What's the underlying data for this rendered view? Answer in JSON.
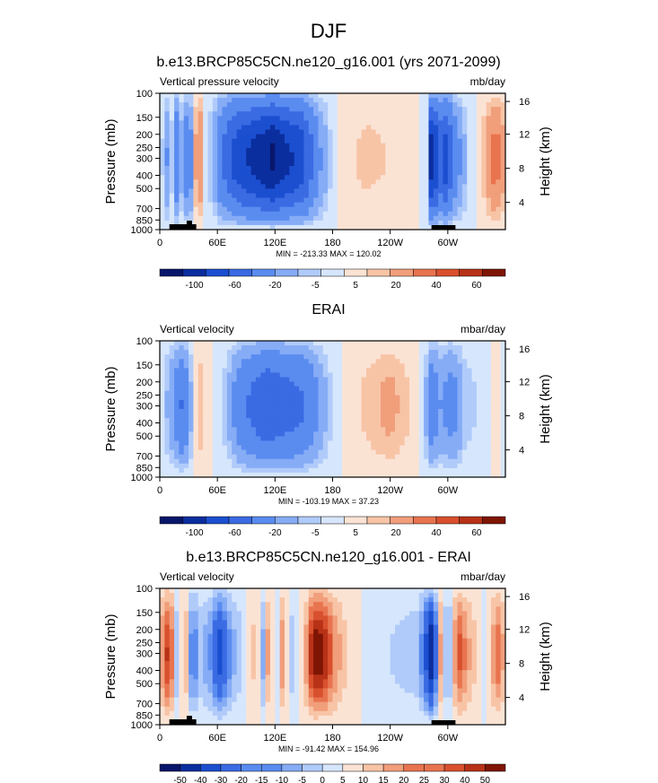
{
  "figure": {
    "title": "DJF"
  },
  "colors": {
    "scale": [
      "#08166b",
      "#0b2e9e",
      "#1b4fd0",
      "#3a6be3",
      "#5a8cf0",
      "#86acf6",
      "#b0cbfa",
      "#d6e6fc",
      "#fbe3d4",
      "#f8c4a6",
      "#f19e7b",
      "#e8744f",
      "#d9502e",
      "#b73217",
      "#7f1504"
    ]
  },
  "chart_data": [
    {
      "type": "heatmap",
      "title": "b.e13.BRCP85C5CN.ne120_g16.001 (yrs 2071-2099)",
      "variable": "Vertical pressure velocity",
      "units": "mb/day",
      "ylabel": "Pressure (mb)",
      "ylabel_right": "Height (km)",
      "x_ticks": [
        "0",
        "60E",
        "120E",
        "180",
        "120W",
        "60W"
      ],
      "y_ticks": [
        "100",
        "150",
        "200",
        "250",
        "300",
        "400",
        "500",
        "700",
        "850",
        "1000"
      ],
      "y_ticks_right": [
        "16",
        "12",
        "8",
        "4"
      ],
      "min_max": "MIN = -213.33  MAX = 120.02",
      "colorbar_labels": [
        "-100",
        "-60",
        "-20",
        "-5",
        "5",
        "20",
        "40",
        "60"
      ],
      "topography": true,
      "field": [
        {
          "lon": 0,
          "v": 2
        },
        {
          "lon": 8,
          "v": -20
        },
        {
          "lon": 12,
          "v": -4
        },
        {
          "lon": 18,
          "v": -35
        },
        {
          "lon": 24,
          "v": -6
        },
        {
          "lon": 30,
          "v": -45
        },
        {
          "lon": 36,
          "v": 8
        },
        {
          "lon": 42,
          "v": 18
        },
        {
          "lon": 48,
          "v": -4
        },
        {
          "lon": 56,
          "v": -12
        },
        {
          "lon": 64,
          "v": -35
        },
        {
          "lon": 80,
          "v": -65
        },
        {
          "lon": 100,
          "v": -80
        },
        {
          "lon": 118,
          "v": -95
        },
        {
          "lon": 130,
          "v": -80
        },
        {
          "lon": 148,
          "v": -65
        },
        {
          "lon": 165,
          "v": -22
        },
        {
          "lon": 178,
          "v": -5
        },
        {
          "lon": 192,
          "v": 3
        },
        {
          "lon": 215,
          "v": 6
        },
        {
          "lon": 245,
          "v": 4
        },
        {
          "lon": 268,
          "v": 2
        },
        {
          "lon": 278,
          "v": -3
        },
        {
          "lon": 284,
          "v": -110
        },
        {
          "lon": 290,
          "v": -45
        },
        {
          "lon": 298,
          "v": -65
        },
        {
          "lon": 308,
          "v": -28
        },
        {
          "lon": 320,
          "v": -6
        },
        {
          "lon": 335,
          "v": 4
        },
        {
          "lon": 350,
          "v": 25
        },
        {
          "lon": 360,
          "v": 8
        }
      ]
    },
    {
      "type": "heatmap",
      "title": "ERAI",
      "variable": "Vertical velocity",
      "units": "mbar/day",
      "ylabel": "Pressure (mb)",
      "ylabel_right": "Height (km)",
      "x_ticks": [
        "0",
        "60E",
        "120E",
        "180",
        "120W",
        "60W"
      ],
      "y_ticks": [
        "100",
        "150",
        "200",
        "250",
        "300",
        "400",
        "500",
        "700",
        "850",
        "1000"
      ],
      "y_ticks_right": [
        "16",
        "12",
        "8",
        "4"
      ],
      "min_max": "MIN = -103.19  MAX = 37.23",
      "colorbar_labels": [
        "-100",
        "-60",
        "-20",
        "-5",
        "5",
        "20",
        "40",
        "60"
      ],
      "topography": false,
      "field": [
        {
          "lon": 0,
          "v": -2
        },
        {
          "lon": 8,
          "v": -10
        },
        {
          "lon": 16,
          "v": -22
        },
        {
          "lon": 24,
          "v": -40
        },
        {
          "lon": 32,
          "v": -12
        },
        {
          "lon": 40,
          "v": 10
        },
        {
          "lon": 48,
          "v": 3
        },
        {
          "lon": 58,
          "v": -2
        },
        {
          "lon": 70,
          "v": -8
        },
        {
          "lon": 80,
          "v": -25
        },
        {
          "lon": 95,
          "v": -40
        },
        {
          "lon": 112,
          "v": -52
        },
        {
          "lon": 130,
          "v": -45
        },
        {
          "lon": 150,
          "v": -38
        },
        {
          "lon": 168,
          "v": -15
        },
        {
          "lon": 180,
          "v": -4
        },
        {
          "lon": 195,
          "v": 2
        },
        {
          "lon": 215,
          "v": 6
        },
        {
          "lon": 240,
          "v": 12
        },
        {
          "lon": 262,
          "v": 4
        },
        {
          "lon": 276,
          "v": -5
        },
        {
          "lon": 282,
          "v": -30
        },
        {
          "lon": 292,
          "v": -18
        },
        {
          "lon": 305,
          "v": -25
        },
        {
          "lon": 318,
          "v": -8
        },
        {
          "lon": 335,
          "v": -3
        },
        {
          "lon": 350,
          "v": 3
        },
        {
          "lon": 360,
          "v": -2
        }
      ]
    },
    {
      "type": "heatmap",
      "title": "b.e13.BRCP85C5CN.ne120_g16.001 - ERAI",
      "variable": "Vertical velocity",
      "units": "mbar/day",
      "ylabel": "Pressure (mb)",
      "ylabel_right": "Height (km)",
      "x_ticks": [
        "0",
        "60E",
        "120E",
        "180",
        "120W",
        "60W"
      ],
      "y_ticks": [
        "100",
        "150",
        "200",
        "250",
        "300",
        "400",
        "500",
        "700",
        "850",
        "1000"
      ],
      "y_ticks_right": [
        "16",
        "12",
        "8",
        "4"
      ],
      "min_max": "MIN = -91.42  MAX = 154.96",
      "colorbar_labels": [
        "-50",
        "-40",
        "-30",
        "-20",
        "-15",
        "-10",
        "-5",
        "0",
        "5",
        "10",
        "15",
        "20",
        "25",
        "30",
        "40",
        "50"
      ],
      "topography": true,
      "field": [
        {
          "lon": 0,
          "v": 8
        },
        {
          "lon": 10,
          "v": 28
        },
        {
          "lon": 18,
          "v": -10
        },
        {
          "lon": 26,
          "v": 14
        },
        {
          "lon": 34,
          "v": -22
        },
        {
          "lon": 42,
          "v": -8
        },
        {
          "lon": 52,
          "v": -14
        },
        {
          "lon": 62,
          "v": -32
        },
        {
          "lon": 75,
          "v": -12
        },
        {
          "lon": 88,
          "v": -4
        },
        {
          "lon": 100,
          "v": 8
        },
        {
          "lon": 108,
          "v": -12
        },
        {
          "lon": 114,
          "v": 18
        },
        {
          "lon": 120,
          "v": -10
        },
        {
          "lon": 128,
          "v": 14
        },
        {
          "lon": 136,
          "v": -8
        },
        {
          "lon": 144,
          "v": -2
        },
        {
          "lon": 152,
          "v": 10
        },
        {
          "lon": 160,
          "v": 32
        },
        {
          "lon": 170,
          "v": 30
        },
        {
          "lon": 182,
          "v": 14
        },
        {
          "lon": 198,
          "v": 2
        },
        {
          "lon": 220,
          "v": -2
        },
        {
          "lon": 250,
          "v": -6
        },
        {
          "lon": 270,
          "v": -8
        },
        {
          "lon": 284,
          "v": -48
        },
        {
          "lon": 292,
          "v": 12
        },
        {
          "lon": 300,
          "v": -18
        },
        {
          "lon": 310,
          "v": 22
        },
        {
          "lon": 322,
          "v": 10
        },
        {
          "lon": 338,
          "v": -2
        },
        {
          "lon": 352,
          "v": 18
        },
        {
          "lon": 360,
          "v": 6
        }
      ]
    }
  ]
}
